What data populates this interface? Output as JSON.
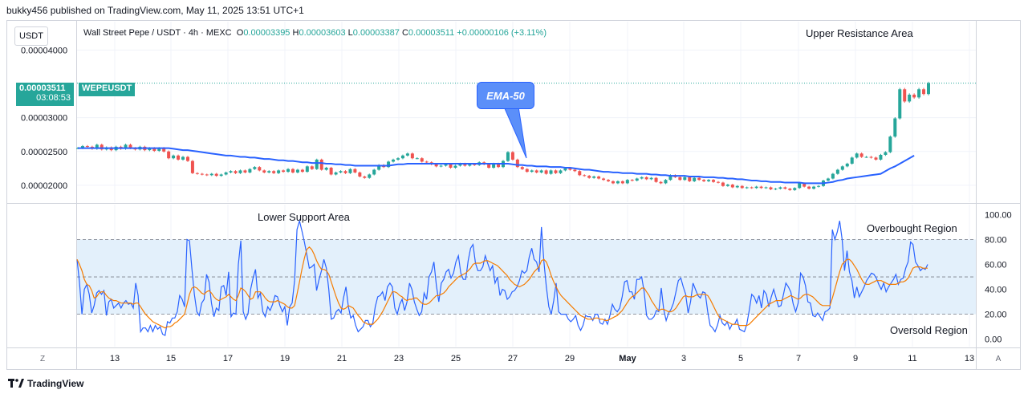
{
  "header": {
    "text": "bukky456 published on TradingView.com, May 11, 2025 13:51 UTC+1"
  },
  "currency": "USDT",
  "ohlc": {
    "symbol_line": "Wall Street Pepe / USDT · 4h · MEXC",
    "o_label": "O",
    "o": "0.00003395",
    "h_label": "H",
    "h": "0.00003603",
    "l_label": "L",
    "l": "0.00003387",
    "c_label": "C",
    "c": "0.00003511",
    "change": "+0.00000106 (+3.11%)"
  },
  "price_tag": {
    "price": "0.00003511",
    "countdown": "03:08:53",
    "symbol": "WEPEUSDT"
  },
  "annotations": {
    "upper_resistance": "Upper Resistance Area",
    "lower_support": "Lower Support Area",
    "overbought": "Overbought Region",
    "oversold": "Oversold Region",
    "ema_callout": "EMA-50"
  },
  "footer": {
    "brand": "TradingView",
    "logo_icon": "tradingview-logo-icon"
  },
  "buttons": {
    "z": "Z",
    "a": "A"
  },
  "colors": {
    "up": "#26a69a",
    "down": "#ef5350",
    "ema": "#2962ff",
    "rsi": "#2962ff",
    "rsi_ma": "#f57c00",
    "band": "#e3f0fb"
  },
  "chart_data": [
    {
      "type": "candlestick",
      "title": "Wall Street Pepe / USDT · 4h · MEXC",
      "ylim": [
        1.75e-05,
        4.42e-05
      ],
      "y_ticks": [
        "0.00004000",
        "0.00003000",
        "0.00002500",
        "0.00002000"
      ],
      "y_tick_values": [
        4e-05,
        3e-05,
        2.5e-05,
        2e-05
      ],
      "x_tick_labels": [
        "13",
        "15",
        "17",
        "19",
        "21",
        "23",
        "25",
        "27",
        "29",
        "May",
        "3",
        "5",
        "7",
        "9",
        "11",
        "13"
      ],
      "last_price": 3.511e-05,
      "close_series": [
        2.55e-05,
        2.58e-05,
        2.57e-05,
        2.54e-05,
        2.6e-05,
        2.53e-05,
        2.56e-05,
        2.52e-05,
        2.57e-05,
        2.54e-05,
        2.6e-05,
        2.55e-05,
        2.53e-05,
        2.57e-05,
        2.52e-05,
        2.55e-05,
        2.51e-05,
        2.55e-05,
        2.5e-05,
        2.4e-05,
        2.44e-05,
        2.38e-05,
        2.42e-05,
        2.36e-05,
        2.18e-05,
        2.17e-05,
        2.16e-05,
        2.15e-05,
        2.17e-05,
        2.14e-05,
        2.16e-05,
        2.19e-05,
        2.21e-05,
        2.18e-05,
        2.22e-05,
        2.19e-05,
        2.24e-05,
        2.27e-05,
        2.22e-05,
        2.19e-05,
        2.21e-05,
        2.18e-05,
        2.22e-05,
        2.2e-05,
        2.24e-05,
        2.19e-05,
        2.23e-05,
        2.2e-05,
        2.28e-05,
        2.24e-05,
        2.38e-05,
        2.23e-05,
        2.26e-05,
        2.16e-05,
        2.19e-05,
        2.21e-05,
        2.18e-05,
        2.24e-05,
        2.19e-05,
        2.13e-05,
        2.11e-05,
        2.16e-05,
        2.23e-05,
        2.3e-05,
        2.27e-05,
        2.35e-05,
        2.38e-05,
        2.4e-05,
        2.44e-05,
        2.47e-05,
        2.4e-05,
        2.4e-05,
        2.35e-05,
        2.34e-05,
        2.31e-05,
        2.28e-05,
        2.29e-05,
        2.31e-05,
        2.26e-05,
        2.29e-05,
        2.32e-05,
        2.29e-05,
        2.31e-05,
        2.3e-05,
        2.34e-05,
        2.31e-05,
        2.26e-05,
        2.32e-05,
        2.27e-05,
        2.36e-05,
        2.49e-05,
        2.38e-05,
        2.27e-05,
        2.24e-05,
        2.2e-05,
        2.22e-05,
        2.19e-05,
        2.22e-05,
        2.17e-05,
        2.22e-05,
        2.18e-05,
        2.22e-05,
        2.25e-05,
        2.23e-05,
        2.21e-05,
        2.15e-05,
        2.14e-05,
        2.11e-05,
        2.13e-05,
        2.1e-05,
        2.08e-05,
        2.06e-05,
        2.03e-05,
        2.06e-05,
        2.03e-05,
        2.08e-05,
        2.07e-05,
        2.1e-05,
        2.12e-05,
        2.09e-05,
        2.11e-05,
        2.05e-05,
        2.03e-05,
        2.08e-05,
        2.15e-05,
        2.12e-05,
        2.08e-05,
        2.12e-05,
        2.06e-05,
        2.11e-05,
        2.08e-05,
        2.06e-05,
        2.08e-05,
        2.05e-05,
        2.04e-05,
        1.99e-05,
        2.01e-05,
        1.97e-05,
        1.99e-05,
        1.96e-05,
        1.97e-05,
        1.96e-05,
        1.98e-05,
        1.96e-05,
        1.97e-05,
        1.94e-05,
        1.95e-05,
        1.97e-05,
        1.95e-05,
        1.93e-05,
        1.96e-05,
        2.03e-05,
        1.98e-05,
        1.95e-05,
        1.98e-05,
        1.99e-05,
        2.07e-05,
        2.1e-05,
        2.17e-05,
        2.23e-05,
        2.28e-05,
        2.32e-05,
        2.41e-05,
        2.47e-05,
        2.42e-05,
        2.42e-05,
        2.41e-05,
        2.38e-05,
        2.45e-05,
        2.49e-05,
        2.72e-05,
        2.99e-05,
        3.42e-05,
        3.24e-05,
        3.34e-05,
        3.3e-05,
        3.42e-05,
        3.35e-05,
        3.51e-05
      ],
      "ema50_series": [
        2.55e-05,
        2.55e-05,
        2.55e-05,
        2.55e-05,
        2.55e-05,
        2.55e-05,
        2.55e-05,
        2.55e-05,
        2.55e-05,
        2.55e-05,
        2.55e-05,
        2.55e-05,
        2.55e-05,
        2.55e-05,
        2.55e-05,
        2.55e-05,
        2.55e-05,
        2.55e-05,
        2.55e-05,
        2.55e-05,
        2.54e-05,
        2.53e-05,
        2.52e-05,
        2.52e-05,
        2.51e-05,
        2.5e-05,
        2.49e-05,
        2.48e-05,
        2.47e-05,
        2.46e-05,
        2.45e-05,
        2.44e-05,
        2.44e-05,
        2.43e-05,
        2.42e-05,
        2.42e-05,
        2.41e-05,
        2.41e-05,
        2.4e-05,
        2.39e-05,
        2.39e-05,
        2.38e-05,
        2.37e-05,
        2.37e-05,
        2.36e-05,
        2.36e-05,
        2.35e-05,
        2.34e-05,
        2.34e-05,
        2.33e-05,
        2.33e-05,
        2.33e-05,
        2.32e-05,
        2.32e-05,
        2.31e-05,
        2.31e-05,
        2.3e-05,
        2.3e-05,
        2.29e-05,
        2.29e-05,
        2.29e-05,
        2.29e-05,
        2.29e-05,
        2.29e-05,
        2.29e-05,
        2.29e-05,
        2.3e-05,
        2.31e-05,
        2.31e-05,
        2.32e-05,
        2.32e-05,
        2.32e-05,
        2.32e-05,
        2.32e-05,
        2.32e-05,
        2.32e-05,
        2.32e-05,
        2.32e-05,
        2.32e-05,
        2.32e-05,
        2.32e-05,
        2.32e-05,
        2.32e-05,
        2.32e-05,
        2.32e-05,
        2.32e-05,
        2.32e-05,
        2.32e-05,
        2.32e-05,
        2.32e-05,
        2.32e-05,
        2.31e-05,
        2.3e-05,
        2.3e-05,
        2.29e-05,
        2.29e-05,
        2.28e-05,
        2.28e-05,
        2.28e-05,
        2.27e-05,
        2.27e-05,
        2.27e-05,
        2.26e-05,
        2.26e-05,
        2.25e-05,
        2.24e-05,
        2.23e-05,
        2.23e-05,
        2.22e-05,
        2.21e-05,
        2.2e-05,
        2.2e-05,
        2.19e-05,
        2.19e-05,
        2.18e-05,
        2.18e-05,
        2.18e-05,
        2.17e-05,
        2.17e-05,
        2.17e-05,
        2.16e-05,
        2.16e-05,
        2.15e-05,
        2.15e-05,
        2.14e-05,
        2.14e-05,
        2.14e-05,
        2.14e-05,
        2.13e-05,
        2.13e-05,
        2.13e-05,
        2.12e-05,
        2.12e-05,
        2.12e-05,
        2.11e-05,
        2.11e-05,
        2.1e-05,
        2.1e-05,
        2.09e-05,
        2.09e-05,
        2.08e-05,
        2.07e-05,
        2.07e-05,
        2.06e-05,
        2.06e-05,
        2.05e-05,
        2.05e-05,
        2.05e-05,
        2.04e-05,
        2.04e-05,
        2.04e-05,
        2.04e-05,
        2.03e-05,
        2.03e-05,
        2.03e-05,
        2.03e-05,
        2.03e-05,
        2.04e-05,
        2.05e-05,
        2.07e-05,
        2.08e-05,
        2.1e-05,
        2.11e-05,
        2.12e-05,
        2.13e-05,
        2.14e-05,
        2.15e-05,
        2.16e-05,
        2.17e-05,
        2.21e-05,
        2.25e-05,
        2.28e-05,
        2.32e-05,
        2.36e-05,
        2.4e-05,
        2.44e-05
      ]
    },
    {
      "type": "line",
      "title": "RSI",
      "ylim": [
        -6,
        108
      ],
      "y_ticks": [
        "100.00",
        "80.00",
        "60.00",
        "40.00",
        "20.00",
        "0.00"
      ],
      "y_tick_values": [
        100,
        80,
        60,
        40,
        20,
        0
      ],
      "bands": {
        "upper": 80,
        "middle": 50,
        "lower": 20
      },
      "series": [
        {
          "values": [
            64,
            46,
            20,
            40,
            44,
            36,
            21,
            27,
            37,
            39,
            36,
            39,
            19,
            30,
            32,
            25,
            27,
            29,
            25,
            29,
            31,
            28,
            29,
            25,
            45,
            35,
            6,
            9,
            9,
            6,
            11,
            6,
            11,
            8,
            10,
            4,
            3,
            14,
            13,
            17,
            17,
            22,
            35,
            32,
            26,
            80,
            79,
            56,
            36,
            22,
            19,
            29,
            32,
            52,
            46,
            29,
            18,
            25,
            23,
            42,
            43,
            35,
            54,
            18,
            21,
            20,
            60,
            79,
            22,
            16,
            21,
            40,
            49,
            56,
            33,
            37,
            22,
            18,
            26,
            23,
            28,
            35,
            34,
            27,
            22,
            26,
            11,
            26,
            29,
            47,
            88,
            95,
            87,
            78,
            68,
            57,
            58,
            60,
            39,
            48,
            55,
            64,
            57,
            40,
            16,
            17,
            22,
            24,
            21,
            33,
            42,
            26,
            17,
            19,
            11,
            6,
            8,
            10,
            15,
            15,
            10,
            13,
            26,
            34,
            35,
            38,
            31,
            42,
            45,
            42,
            25,
            20,
            28,
            32,
            23,
            30,
            45,
            40,
            30,
            24,
            19,
            22,
            37,
            32,
            50,
            54,
            62,
            43,
            30,
            45,
            48,
            54,
            56,
            49,
            53,
            62,
            67,
            53,
            48,
            48,
            63,
            73,
            76,
            61,
            55,
            55,
            58,
            67,
            61,
            55,
            59,
            45,
            50,
            35,
            40,
            39,
            32,
            34,
            38,
            39,
            42,
            47,
            55,
            53,
            55,
            66,
            73,
            64,
            62,
            54,
            90,
            62,
            42,
            26,
            20,
            31,
            45,
            22,
            20,
            20,
            20,
            16,
            14,
            16,
            19,
            11,
            7,
            11,
            19,
            18,
            18,
            15,
            20,
            20,
            13,
            12,
            16,
            12,
            19,
            28,
            24,
            22,
            25,
            34,
            46,
            47,
            38,
            38,
            32,
            48,
            48,
            50,
            38,
            19,
            16,
            16,
            18,
            23,
            22,
            41,
            24,
            15,
            21,
            24,
            29,
            38,
            47,
            49,
            42,
            36,
            21,
            30,
            45,
            40,
            35,
            33,
            38,
            37,
            22,
            11,
            9,
            6,
            11,
            19,
            13,
            11,
            14,
            8,
            12,
            12,
            16,
            8,
            7,
            6,
            12,
            23,
            36,
            34,
            29,
            35,
            25,
            39,
            36,
            26,
            34,
            40,
            33,
            26,
            27,
            36,
            45,
            42,
            38,
            28,
            22,
            29,
            53,
            50,
            43,
            30,
            29,
            19,
            18,
            21,
            18,
            15,
            22,
            23,
            25,
            88,
            80,
            86,
            95,
            80,
            55,
            71,
            54,
            47,
            33,
            42,
            34,
            38,
            42,
            47,
            50,
            53,
            52,
            49,
            44,
            40,
            45,
            38,
            42,
            45,
            48,
            52,
            44,
            48,
            49,
            57,
            62,
            78,
            76,
            62,
            59,
            55,
            57,
            56,
            60
          ]
        },
        {
          "values": [
            64,
            60,
            55,
            48,
            44,
            43,
            39,
            33,
            34,
            37,
            38,
            38,
            35,
            33,
            32,
            31,
            31,
            30,
            29,
            29,
            29,
            29,
            29,
            28,
            29,
            29,
            26,
            23,
            20,
            18,
            16,
            14,
            13,
            12,
            11,
            10,
            9,
            10,
            10,
            11,
            13,
            14,
            16,
            18,
            20,
            28,
            36,
            41,
            42,
            41,
            39,
            37,
            36,
            38,
            39,
            37,
            34,
            32,
            31,
            32,
            33,
            34,
            36,
            34,
            32,
            31,
            35,
            41,
            40,
            38,
            35,
            32,
            33,
            38,
            38,
            38,
            36,
            33,
            31,
            30,
            30,
            30,
            31,
            30,
            29,
            28,
            26,
            25,
            25,
            27,
            36,
            46,
            56,
            65,
            72,
            74,
            72,
            68,
            63,
            59,
            56,
            56,
            55,
            52,
            46,
            40,
            34,
            29,
            25,
            24,
            25,
            27,
            26,
            25,
            22,
            19,
            17,
            14,
            13,
            12,
            12,
            12,
            14,
            16,
            19,
            22,
            26,
            30,
            34,
            38,
            38,
            37,
            35,
            34,
            32,
            31,
            32,
            32,
            33,
            33,
            31,
            29,
            28,
            28,
            29,
            31,
            33,
            35,
            35,
            36,
            37,
            39,
            42,
            44,
            46,
            48,
            50,
            51,
            52,
            53,
            55,
            57,
            60,
            61,
            61,
            61,
            62,
            63,
            63,
            62,
            61,
            60,
            59,
            57,
            55,
            53,
            51,
            48,
            46,
            44,
            43,
            42,
            43,
            44,
            46,
            48,
            51,
            54,
            56,
            58,
            63,
            64,
            62,
            57,
            51,
            46,
            42,
            38,
            35,
            33,
            31,
            29,
            27,
            25,
            23,
            21,
            19,
            18,
            17,
            16,
            16,
            16,
            17,
            17,
            16,
            16,
            15,
            15,
            16,
            17,
            18,
            19,
            21,
            23,
            26,
            29,
            32,
            34,
            35,
            37,
            39,
            41,
            41,
            38,
            35,
            31,
            28,
            25,
            23,
            24,
            24,
            23,
            22,
            22,
            23,
            25,
            28,
            31,
            34,
            35,
            34,
            34,
            34,
            35,
            36,
            36,
            36,
            36,
            35,
            32,
            28,
            24,
            20,
            17,
            16,
            15,
            14,
            13,
            12,
            12,
            12,
            11,
            11,
            11,
            11,
            12,
            14,
            16,
            18,
            20,
            22,
            24,
            26,
            28,
            29,
            30,
            31,
            31,
            31,
            32,
            33,
            34,
            35,
            34,
            33,
            32,
            33,
            35,
            36,
            36,
            35,
            34,
            32,
            30,
            28,
            27,
            27,
            27,
            27,
            33,
            40,
            47,
            54,
            60,
            62,
            64,
            64,
            62,
            59,
            56,
            52,
            48,
            45,
            44,
            44,
            45,
            46,
            47,
            47,
            47,
            46,
            45,
            44,
            44,
            44,
            44,
            45,
            46,
            46,
            47,
            49,
            53,
            57,
            58,
            58,
            58,
            57,
            57,
            57
          ]
        }
      ]
    }
  ],
  "xaxis": [
    "13",
    "15",
    "17",
    "19",
    "21",
    "23",
    "25",
    "27",
    "29",
    "May",
    "3",
    "5",
    "7",
    "9",
    "11",
    "13"
  ]
}
